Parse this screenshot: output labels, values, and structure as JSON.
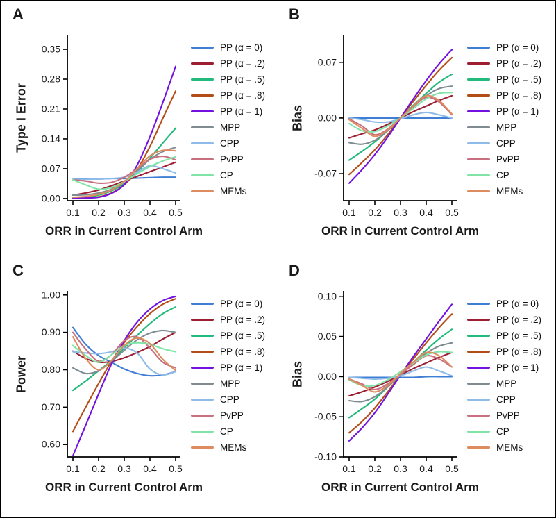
{
  "legend": {
    "items": [
      {
        "label": "PP (α = 0)",
        "color": "#3e7ed4"
      },
      {
        "label": "PP (α = .2)",
        "color": "#9d1d33"
      },
      {
        "label": "PP (α = .5)",
        "color": "#21ba7c"
      },
      {
        "label": "PP (α = .8)",
        "color": "#b34d17"
      },
      {
        "label": "PP (α = 1)",
        "color": "#7312e0"
      },
      {
        "label": "MPP",
        "color": "#7f8b90"
      },
      {
        "label": "CPP",
        "color": "#8fbbe9"
      },
      {
        "label": "PvPP",
        "color": "#c97080"
      },
      {
        "label": "CP",
        "color": "#7fe4a6"
      },
      {
        "label": "MEMs",
        "color": "#de8b60"
      }
    ]
  },
  "chart_data": [
    {
      "id": "A",
      "type": "line",
      "title": "A",
      "xlabel": "ORR in Current Control Arm",
      "ylabel": "Type I Error",
      "x": [
        0.1,
        0.15,
        0.2,
        0.25,
        0.3,
        0.35,
        0.4,
        0.45,
        0.5
      ],
      "xticks": [
        0.1,
        0.2,
        0.3,
        0.4,
        0.5
      ],
      "xtick_labels": [
        "0.1",
        "0.2",
        "0.3",
        "0.4",
        "0.5"
      ],
      "yticks": [
        0.0,
        0.07,
        0.14,
        0.21,
        0.28,
        0.35
      ],
      "ytick_labels": [
        "0.00",
        "0.07",
        "0.14",
        "0.21",
        "0.28",
        "0.35"
      ],
      "ylim": [
        -0.005,
        0.381
      ],
      "grid": false,
      "legend_position": "right",
      "series": [
        {
          "name": "PP (α = 0)",
          "values": [
            0.045,
            0.046,
            0.046,
            0.047,
            0.047,
            0.048,
            0.049,
            0.05,
            0.05
          ]
        },
        {
          "name": "PP (α = .2)",
          "values": [
            0.008,
            0.013,
            0.02,
            0.03,
            0.041,
            0.052,
            0.063,
            0.074,
            0.085
          ]
        },
        {
          "name": "PP (α = .5)",
          "values": [
            0.001,
            0.003,
            0.008,
            0.018,
            0.035,
            0.062,
            0.095,
            0.13,
            0.165
          ]
        },
        {
          "name": "PP (α = .8)",
          "values": [
            0.0,
            0.001,
            0.004,
            0.013,
            0.032,
            0.068,
            0.122,
            0.188,
            0.252
          ]
        },
        {
          "name": "PP (α = 1)",
          "values": [
            0.0,
            0.001,
            0.003,
            0.012,
            0.033,
            0.078,
            0.145,
            0.225,
            0.31
          ]
        },
        {
          "name": "MPP",
          "values": [
            0.008,
            0.009,
            0.013,
            0.022,
            0.04,
            0.065,
            0.092,
            0.11,
            0.12
          ]
        },
        {
          "name": "CPP",
          "values": [
            0.045,
            0.045,
            0.046,
            0.047,
            0.05,
            0.062,
            0.077,
            0.07,
            0.06
          ]
        },
        {
          "name": "PvPP",
          "values": [
            0.044,
            0.041,
            0.036,
            0.038,
            0.05,
            0.07,
            0.092,
            0.099,
            0.091
          ]
        },
        {
          "name": "CP",
          "values": [
            0.044,
            0.032,
            0.022,
            0.026,
            0.04,
            0.058,
            0.075,
            0.088,
            0.098
          ]
        },
        {
          "name": "MEMs",
          "values": [
            0.003,
            0.005,
            0.01,
            0.02,
            0.04,
            0.07,
            0.1,
            0.113,
            0.112
          ]
        }
      ]
    },
    {
      "id": "B",
      "type": "line",
      "title": "B",
      "xlabel": "ORR in Current Control Arm",
      "ylabel": "Bias",
      "x": [
        0.1,
        0.15,
        0.2,
        0.25,
        0.3,
        0.35,
        0.4,
        0.45,
        0.5
      ],
      "xticks": [
        0.1,
        0.2,
        0.3,
        0.4,
        0.5
      ],
      "xtick_labels": [
        "0.1",
        "0.2",
        "0.3",
        "0.4",
        "0.5"
      ],
      "yticks": [
        -0.07,
        0.0,
        0.07
      ],
      "ytick_labels": [
        "-0.07",
        "0.00",
        "0.07"
      ],
      "ylim": [
        -0.104,
        0.103
      ],
      "grid": false,
      "legend_position": "right",
      "series": [
        {
          "name": "PP (α = 0)",
          "values": [
            0.0,
            0.0,
            0.0,
            0.0,
            0.0,
            0.0,
            0.0,
            0.0,
            0.0
          ]
        },
        {
          "name": "PP (α = .2)",
          "values": [
            -0.025,
            -0.02,
            -0.015,
            -0.008,
            0.0,
            0.008,
            0.015,
            0.022,
            0.028
          ]
        },
        {
          "name": "PP (α = .5)",
          "values": [
            -0.053,
            -0.042,
            -0.03,
            -0.016,
            0.0,
            0.016,
            0.031,
            0.045,
            0.055
          ]
        },
        {
          "name": "PP (α = .8)",
          "values": [
            -0.071,
            -0.056,
            -0.04,
            -0.021,
            0.0,
            0.021,
            0.041,
            0.06,
            0.076
          ]
        },
        {
          "name": "PP (α = 1)",
          "values": [
            -0.082,
            -0.065,
            -0.046,
            -0.024,
            0.0,
            0.024,
            0.047,
            0.068,
            0.086
          ]
        },
        {
          "name": "MPP",
          "values": [
            -0.031,
            -0.033,
            -0.028,
            -0.016,
            0.0,
            0.015,
            0.028,
            0.037,
            0.04
          ]
        },
        {
          "name": "CPP",
          "values": [
            0.0,
            -0.002,
            -0.005,
            -0.005,
            -0.001,
            0.004,
            0.007,
            0.004,
            0.0
          ]
        },
        {
          "name": "PvPP",
          "values": [
            -0.001,
            -0.01,
            -0.021,
            -0.014,
            0.0,
            0.014,
            0.026,
            0.02,
            0.004
          ]
        },
        {
          "name": "CP",
          "values": [
            -0.007,
            -0.016,
            -0.017,
            -0.01,
            0.0,
            0.012,
            0.024,
            0.031,
            0.032
          ]
        },
        {
          "name": "MEMs",
          "values": [
            -0.002,
            -0.013,
            -0.023,
            -0.015,
            0.0,
            0.015,
            0.028,
            0.022,
            0.005
          ]
        }
      ]
    },
    {
      "id": "C",
      "type": "line",
      "title": "C",
      "xlabel": "ORR in Current Control Arm",
      "ylabel": "Power",
      "x": [
        0.1,
        0.15,
        0.2,
        0.25,
        0.3,
        0.35,
        0.4,
        0.45,
        0.5
      ],
      "xticks": [
        0.1,
        0.2,
        0.3,
        0.4,
        0.5
      ],
      "xtick_labels": [
        "0.1",
        "0.2",
        "0.3",
        "0.4",
        "0.5"
      ],
      "yticks": [
        0.6,
        0.7,
        0.8,
        0.9,
        1.0
      ],
      "ytick_labels": [
        "0.60",
        "0.70",
        "0.80",
        "0.90",
        "1.00"
      ],
      "ylim": [
        0.567,
        1.007
      ],
      "grid": false,
      "legend_position": "right",
      "series": [
        {
          "name": "PP (α = 0)",
          "values": [
            0.913,
            0.868,
            0.838,
            0.82,
            0.802,
            0.79,
            0.784,
            0.786,
            0.795
          ]
        },
        {
          "name": "PP (α = .2)",
          "values": [
            0.85,
            0.83,
            0.82,
            0.822,
            0.832,
            0.846,
            0.862,
            0.882,
            0.9
          ]
        },
        {
          "name": "PP (α = .5)",
          "values": [
            0.745,
            0.77,
            0.797,
            0.825,
            0.858,
            0.892,
            0.923,
            0.95,
            0.968
          ]
        },
        {
          "name": "PP (α = .8)",
          "values": [
            0.635,
            0.7,
            0.763,
            0.822,
            0.873,
            0.915,
            0.95,
            0.975,
            0.99
          ]
        },
        {
          "name": "PP (α = 1)",
          "values": [
            0.57,
            0.652,
            0.735,
            0.815,
            0.878,
            0.927,
            0.962,
            0.985,
            0.996
          ]
        },
        {
          "name": "MPP",
          "values": [
            0.805,
            0.79,
            0.797,
            0.822,
            0.852,
            0.88,
            0.898,
            0.905,
            0.9
          ]
        },
        {
          "name": "CPP",
          "values": [
            0.848,
            0.845,
            0.843,
            0.848,
            0.858,
            0.845,
            0.802,
            0.786,
            0.795
          ]
        },
        {
          "name": "PvPP",
          "values": [
            0.9,
            0.855,
            0.823,
            0.84,
            0.878,
            0.888,
            0.858,
            0.82,
            0.805
          ]
        },
        {
          "name": "CP",
          "values": [
            0.865,
            0.838,
            0.82,
            0.84,
            0.865,
            0.872,
            0.868,
            0.856,
            0.848
          ]
        },
        {
          "name": "MEMs",
          "values": [
            0.888,
            0.83,
            0.8,
            0.825,
            0.865,
            0.885,
            0.87,
            0.828,
            0.798
          ]
        }
      ]
    },
    {
      "id": "D",
      "type": "line",
      "title": "D",
      "xlabel": "ORR in Current Control Arm",
      "ylabel": "Bias",
      "x": [
        0.1,
        0.15,
        0.2,
        0.25,
        0.3,
        0.35,
        0.4,
        0.45,
        0.5
      ],
      "xticks": [
        0.1,
        0.2,
        0.3,
        0.4,
        0.5
      ],
      "xtick_labels": [
        "0.1",
        "0.2",
        "0.3",
        "0.4",
        "0.5"
      ],
      "yticks": [
        -0.1,
        -0.05,
        0.0,
        0.05,
        0.1
      ],
      "ytick_labels": [
        "-0.10",
        "-0.05",
        "0.00",
        "0.05",
        "0.10"
      ],
      "ylim": [
        -0.1,
        0.105
      ],
      "grid": false,
      "legend_position": "right",
      "series": [
        {
          "name": "PP (α = 0)",
          "values": [
            -0.001,
            -0.001,
            -0.001,
            -0.001,
            -0.001,
            -0.001,
            0.0,
            0.0,
            0.0
          ]
        },
        {
          "name": "PP (α = .2)",
          "values": [
            -0.024,
            -0.019,
            -0.013,
            -0.006,
            0.002,
            0.01,
            0.017,
            0.024,
            0.03
          ]
        },
        {
          "name": "PP (α = .5)",
          "values": [
            -0.051,
            -0.04,
            -0.028,
            -0.013,
            0.003,
            0.018,
            0.033,
            0.047,
            0.059
          ]
        },
        {
          "name": "PP (α = .8)",
          "values": [
            -0.07,
            -0.056,
            -0.039,
            -0.019,
            0.002,
            0.022,
            0.042,
            0.061,
            0.078
          ]
        },
        {
          "name": "PP (α = 1)",
          "values": [
            -0.08,
            -0.064,
            -0.045,
            -0.022,
            0.002,
            0.025,
            0.047,
            0.069,
            0.09
          ]
        },
        {
          "name": "MPP",
          "values": [
            -0.03,
            -0.031,
            -0.025,
            -0.013,
            0.002,
            0.016,
            0.029,
            0.038,
            0.042
          ]
        },
        {
          "name": "CPP",
          "values": [
            -0.001,
            -0.002,
            -0.003,
            -0.002,
            0.001,
            0.007,
            0.012,
            0.007,
            0.001
          ]
        },
        {
          "name": "PvPP",
          "values": [
            -0.003,
            -0.009,
            -0.016,
            -0.009,
            0.003,
            0.015,
            0.026,
            0.022,
            0.012
          ]
        },
        {
          "name": "CP",
          "values": [
            -0.004,
            -0.011,
            -0.011,
            -0.004,
            0.006,
            0.017,
            0.027,
            0.031,
            0.03
          ]
        },
        {
          "name": "MEMs",
          "values": [
            -0.003,
            -0.011,
            -0.019,
            -0.011,
            0.004,
            0.018,
            0.03,
            0.026,
            0.012
          ]
        }
      ]
    }
  ]
}
